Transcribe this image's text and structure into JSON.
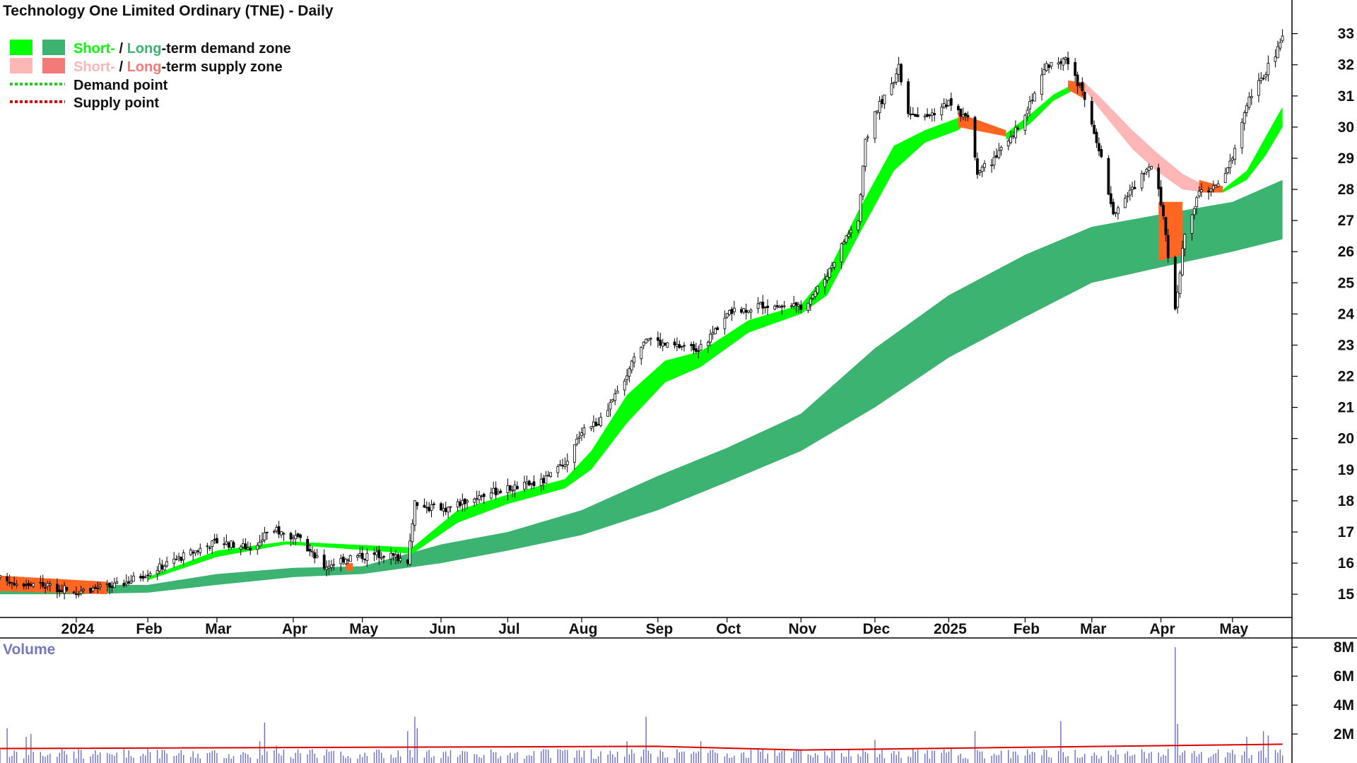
{
  "chart_data": {
    "type": "candlestick",
    "title": "Technology One Limited Ordinary (TNE) - Daily",
    "legend": {
      "placement": "top-left",
      "demand_zone": {
        "short": "Short-",
        "sep": " / ",
        "long": "Long",
        "rest": "-term demand zone"
      },
      "supply_zone": {
        "short": "Short-",
        "sep": " / ",
        "long": "Long",
        "rest": "-term supply zone"
      },
      "demand_point": "Demand point",
      "supply_point": "Supply point"
    },
    "colors": {
      "short_demand": "#00ff00",
      "long_demand": "#3cb371",
      "short_supply": "#ffb6b6",
      "long_supply": "#ff6622",
      "long_supply_legend": "#f47a7a",
      "demand_point": "#22cc22",
      "supply_point": "#dd0000",
      "candle": "#000000",
      "volume_bar": "#6b6bcc",
      "volume_avg": "#dd0000",
      "volume_title": "#7777bb"
    },
    "price_axis": {
      "min": 14.3,
      "max": 33.4,
      "ticks": [
        15,
        16,
        17,
        18,
        19,
        20,
        21,
        22,
        23,
        24,
        25,
        26,
        27,
        28,
        29,
        30,
        31,
        32,
        33
      ]
    },
    "time_axis": {
      "range": [
        "2023-12-01",
        "2025-05-23"
      ],
      "labels": [
        {
          "label": "2024",
          "date": "2024-01-02"
        },
        {
          "label": "Feb",
          "date": "2024-02-01"
        },
        {
          "label": "Mar",
          "date": "2024-03-01"
        },
        {
          "label": "Apr",
          "date": "2024-04-02"
        },
        {
          "label": "May",
          "date": "2024-05-01"
        },
        {
          "label": "Jun",
          "date": "2024-06-03"
        },
        {
          "label": "Jul",
          "date": "2024-07-01"
        },
        {
          "label": "Aug",
          "date": "2024-08-01"
        },
        {
          "label": "Sep",
          "date": "2024-09-02"
        },
        {
          "label": "Oct",
          "date": "2024-10-01"
        },
        {
          "label": "Nov",
          "date": "2024-11-01"
        },
        {
          "label": "Dec",
          "date": "2024-12-02"
        },
        {
          "label": "2025",
          "date": "2025-01-02"
        },
        {
          "label": "Feb",
          "date": "2025-02-03"
        },
        {
          "label": "Mar",
          "date": "2025-03-03"
        },
        {
          "label": "Apr",
          "date": "2025-04-01"
        },
        {
          "label": "May",
          "date": "2025-05-01"
        }
      ]
    },
    "price_anchors": [
      [
        "2023-12-01",
        15.5
      ],
      [
        "2023-12-15",
        15.3
      ],
      [
        "2024-01-02",
        15.1
      ],
      [
        "2024-01-20",
        15.3
      ],
      [
        "2024-02-01",
        15.7
      ],
      [
        "2024-02-15",
        16.2
      ],
      [
        "2024-03-01",
        16.7
      ],
      [
        "2024-03-15",
        16.5
      ],
      [
        "2024-03-25",
        17.1
      ],
      [
        "2024-04-05",
        16.7
      ],
      [
        "2024-04-15",
        15.9
      ],
      [
        "2024-04-25",
        16.2
      ],
      [
        "2024-05-10",
        16.3
      ],
      [
        "2024-05-20",
        16.1
      ],
      [
        "2024-05-23",
        17.9
      ],
      [
        "2024-06-03",
        17.7
      ],
      [
        "2024-06-20",
        18.2
      ],
      [
        "2024-07-01",
        18.4
      ],
      [
        "2024-07-15",
        18.6
      ],
      [
        "2024-07-26",
        19.2
      ],
      [
        "2024-08-01",
        20.3
      ],
      [
        "2024-08-10",
        20.6
      ],
      [
        "2024-08-20",
        22.1
      ],
      [
        "2024-08-28",
        23.3
      ],
      [
        "2024-09-05",
        23.0
      ],
      [
        "2024-09-20",
        22.9
      ],
      [
        "2024-10-01",
        24.0
      ],
      [
        "2024-10-15",
        24.3
      ],
      [
        "2024-11-01",
        24.2
      ],
      [
        "2024-11-10",
        25.0
      ],
      [
        "2024-11-20",
        26.5
      ],
      [
        "2024-11-25",
        27.0
      ],
      [
        "2024-11-28",
        29.5
      ],
      [
        "2024-12-02",
        30.5
      ],
      [
        "2024-12-08",
        31.2
      ],
      [
        "2024-12-12",
        31.9
      ],
      [
        "2024-12-16",
        30.5
      ],
      [
        "2024-12-23",
        30.3
      ],
      [
        "2025-01-02",
        30.8
      ],
      [
        "2025-01-10",
        30.2
      ],
      [
        "2025-01-14",
        28.6
      ],
      [
        "2025-01-20",
        28.9
      ],
      [
        "2025-01-28",
        29.6
      ],
      [
        "2025-02-05",
        30.8
      ],
      [
        "2025-02-12",
        32.0
      ],
      [
        "2025-02-20",
        32.2
      ],
      [
        "2025-02-27",
        31.1
      ],
      [
        "2025-03-06",
        29.3
      ],
      [
        "2025-03-12",
        27.3
      ],
      [
        "2025-03-20",
        28.0
      ],
      [
        "2025-03-27",
        28.8
      ],
      [
        "2025-03-31",
        28.1
      ],
      [
        "2025-04-03",
        26.5
      ],
      [
        "2025-04-07",
        24.2
      ],
      [
        "2025-04-11",
        26.6
      ],
      [
        "2025-04-17",
        27.9
      ],
      [
        "2025-04-25",
        28.1
      ],
      [
        "2025-05-01",
        29.0
      ],
      [
        "2025-05-07",
        30.8
      ],
      [
        "2025-05-13",
        31.5
      ],
      [
        "2025-05-20",
        32.5
      ],
      [
        "2025-05-22",
        32.8
      ]
    ],
    "short_demand_zone": [
      [
        "2024-02-01",
        15.45,
        15.55
      ],
      [
        "2024-03-01",
        16.2,
        16.4
      ],
      [
        "2024-03-30",
        16.6,
        16.7
      ],
      [
        "2024-05-22",
        16.3,
        16.5
      ],
      [
        "2024-06-10",
        17.3,
        17.7
      ],
      [
        "2024-07-01",
        17.9,
        18.2
      ],
      [
        "2024-07-25",
        18.4,
        18.7
      ],
      [
        "2024-08-05",
        19.0,
        19.6
      ],
      [
        "2024-08-20",
        20.5,
        21.4
      ],
      [
        "2024-09-05",
        21.8,
        22.5
      ],
      [
        "2024-09-20",
        22.3,
        22.8
      ],
      [
        "2024-10-10",
        23.4,
        23.8
      ],
      [
        "2024-11-01",
        24.0,
        24.3
      ],
      [
        "2024-11-12",
        24.6,
        25.3
      ],
      [
        "2024-11-25",
        26.5,
        27.3
      ],
      [
        "2024-12-10",
        28.6,
        29.4
      ],
      [
        "2024-12-23",
        29.5,
        29.9
      ],
      [
        "2025-01-06",
        29.9,
        30.3
      ],
      [
        "2025-01-10",
        30.2,
        30.45
      ]
    ],
    "short_demand_zone_2": [
      [
        "2025-01-26",
        29.6,
        29.8
      ],
      [
        "2025-02-05",
        30.1,
        30.4
      ],
      [
        "2025-02-15",
        30.85,
        31.05
      ],
      [
        "2025-02-25",
        31.25,
        31.45
      ]
    ],
    "short_demand_zone_3": [
      [
        "2025-04-27",
        27.9,
        28.0
      ],
      [
        "2025-05-07",
        28.3,
        28.6
      ],
      [
        "2025-05-15",
        29.1,
        29.7
      ],
      [
        "2025-05-22",
        30.0,
        30.65
      ]
    ],
    "short_supply_zone": [
      [
        "2025-02-27",
        31.3,
        31.5
      ],
      [
        "2025-03-06",
        30.6,
        31.0
      ],
      [
        "2025-03-20",
        29.3,
        29.9
      ],
      [
        "2025-03-30",
        28.6,
        29.2
      ],
      [
        "2025-04-10",
        28.0,
        28.5
      ],
      [
        "2025-04-20",
        27.9,
        28.1
      ]
    ],
    "long_demand_zone": [
      [
        "2023-12-01",
        15.0,
        15.6
      ],
      [
        "2024-01-02",
        15.0,
        15.3
      ],
      [
        "2024-02-01",
        15.05,
        15.3
      ],
      [
        "2024-03-01",
        15.3,
        15.65
      ],
      [
        "2024-04-02",
        15.55,
        15.85
      ],
      [
        "2024-05-01",
        15.65,
        15.9
      ],
      [
        "2024-06-03",
        16.0,
        16.6
      ],
      [
        "2024-07-01",
        16.4,
        17.0
      ],
      [
        "2024-08-01",
        16.9,
        17.7
      ],
      [
        "2024-09-02",
        17.7,
        18.8
      ],
      [
        "2024-10-01",
        18.6,
        19.7
      ],
      [
        "2024-11-01",
        19.6,
        20.8
      ],
      [
        "2024-12-02",
        21.0,
        22.9
      ],
      [
        "2025-01-02",
        22.6,
        24.6
      ],
      [
        "2025-02-03",
        23.9,
        25.9
      ],
      [
        "2025-03-03",
        25.0,
        26.8
      ],
      [
        "2025-04-01",
        25.5,
        27.2
      ],
      [
        "2025-05-01",
        26.0,
        27.6
      ],
      [
        "2025-05-22",
        26.4,
        28.3
      ]
    ],
    "long_supply_zones": [
      [
        [
          "2023-12-01",
          15.1,
          15.6
        ],
        [
          "2024-01-15",
          15.0,
          15.4
        ]
      ],
      [
        [
          "2024-04-24",
          15.75,
          16.0
        ],
        [
          "2024-04-27",
          15.75,
          16.0
        ]
      ],
      [
        [
          "2025-01-06",
          30.0,
          30.45
        ],
        [
          "2025-01-26",
          29.7,
          29.9
        ]
      ],
      [
        [
          "2025-02-21",
          31.2,
          31.5
        ],
        [
          "2025-02-28",
          30.9,
          31.4
        ]
      ],
      [
        [
          "2025-03-31",
          25.7,
          27.6
        ],
        [
          "2025-04-10",
          25.9,
          27.6
        ]
      ],
      [
        [
          "2025-04-17",
          27.9,
          28.3
        ],
        [
          "2025-04-27",
          27.9,
          28.1
        ]
      ]
    ],
    "volume": {
      "label": "Volume",
      "ticks": [
        {
          "label": "2M",
          "value": 2000000
        },
        {
          "label": "4M",
          "value": 4000000
        },
        {
          "label": "6M",
          "value": 6000000
        },
        {
          "label": "8M",
          "value": 8000000
        }
      ],
      "max": 8300000,
      "typical": 700000,
      "average": [
        [
          "2023-12-01",
          1000000
        ],
        [
          "2024-09-01",
          1150000
        ],
        [
          "2024-11-01",
          900000
        ],
        [
          "2025-05-22",
          1300000
        ]
      ],
      "spikes": [
        [
          "2023-12-04",
          2400000
        ],
        [
          "2023-12-12",
          1800000
        ],
        [
          "2023-12-14",
          2000000
        ],
        [
          "2024-03-19",
          1500000
        ],
        [
          "2024-03-21",
          2800000
        ],
        [
          "2024-03-26",
          1200000
        ],
        [
          "2024-05-20",
          2200000
        ],
        [
          "2024-05-23",
          3200000
        ],
        [
          "2024-05-24",
          2400000
        ],
        [
          "2024-08-20",
          1500000
        ],
        [
          "2024-08-28",
          3200000
        ],
        [
          "2024-09-20",
          1500000
        ],
        [
          "2024-12-02",
          1600000
        ],
        [
          "2025-01-13",
          2200000
        ],
        [
          "2025-02-18",
          2900000
        ],
        [
          "2025-04-07",
          8000000
        ],
        [
          "2025-04-08",
          2700000
        ],
        [
          "2025-05-07",
          1800000
        ],
        [
          "2025-05-14",
          2200000
        ],
        [
          "2025-05-16",
          1900000
        ]
      ]
    }
  }
}
